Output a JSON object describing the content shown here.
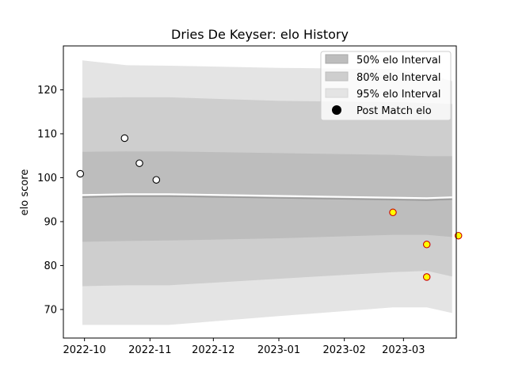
{
  "chart_data": {
    "type": "area",
    "title": "Dries De Keyser: elo History",
    "xlabel": "",
    "ylabel": "elo score",
    "x_ticks": [
      "2022-10",
      "2022-11",
      "2022-12",
      "2023-01",
      "2023-02",
      "2023-03"
    ],
    "y_ticks": [
      70,
      80,
      90,
      100,
      110,
      120
    ],
    "xlim": [
      "2022-09-21",
      "2023-03-26"
    ],
    "ylim": [
      63.5,
      130
    ],
    "grid": false,
    "legend_position": "top-right",
    "legend": [
      {
        "label": "50% elo Interval"
      },
      {
        "label": "80% elo Interval"
      },
      {
        "label": "95% elo Interval"
      },
      {
        "label": "Post Match elo"
      }
    ],
    "bands": {
      "x": [
        "2022-09-30",
        "2022-10-21",
        "2022-11-10",
        "2023-01-01",
        "2023-02-24",
        "2023-03-12",
        "2023-03-24"
      ],
      "mean": [
        95.6,
        95.8,
        95.8,
        95.4,
        95.0,
        94.9,
        95.1
      ],
      "band95": {
        "lower": [
          66.5,
          66.5,
          66.5,
          68.5,
          70.5,
          70.5,
          69.2
        ],
        "upper": [
          126.7,
          125.6,
          125.5,
          125.0,
          124.7,
          123.5,
          122.0
        ]
      },
      "band80": {
        "lower": [
          75.3,
          75.5,
          75.5,
          77.0,
          78.5,
          78.8,
          77.5
        ],
        "upper": [
          118.2,
          118.3,
          118.3,
          117.5,
          117.2,
          117.0,
          116.8
        ]
      },
      "band50": {
        "lower": [
          85.4,
          85.6,
          85.7,
          86.2,
          87.0,
          87.0,
          86.5
        ],
        "upper": [
          105.9,
          106.0,
          106.0,
          105.6,
          105.2,
          104.9,
          104.9
        ]
      }
    },
    "series": [
      {
        "points": [
          {
            "x": "2022-09-29",
            "y": 100.9
          },
          {
            "x": "2022-10-20",
            "y": 109.0
          },
          {
            "x": "2022-10-27",
            "y": 103.3
          },
          {
            "x": "2022-11-04",
            "y": 99.5
          }
        ]
      },
      {
        "points": [
          {
            "x": "2023-02-24",
            "y": 92.1
          },
          {
            "x": "2023-03-12",
            "y": 84.8
          },
          {
            "x": "2023-03-12",
            "y": 77.4
          },
          {
            "x": "2023-03-27",
            "y": 86.8
          }
        ]
      }
    ],
    "colors": {
      "band95": "#e4e4e4",
      "band80": "#cecece",
      "band50": "#bdbdbd",
      "mean_line": "#9a9a9a",
      "mean_highlight": "#ffffff",
      "point_white_fill": "#ffffff",
      "point_white_edge": "#000000",
      "point_yellow_fill": "#ffff00",
      "point_yellow_edge": "#cc0000"
    }
  }
}
